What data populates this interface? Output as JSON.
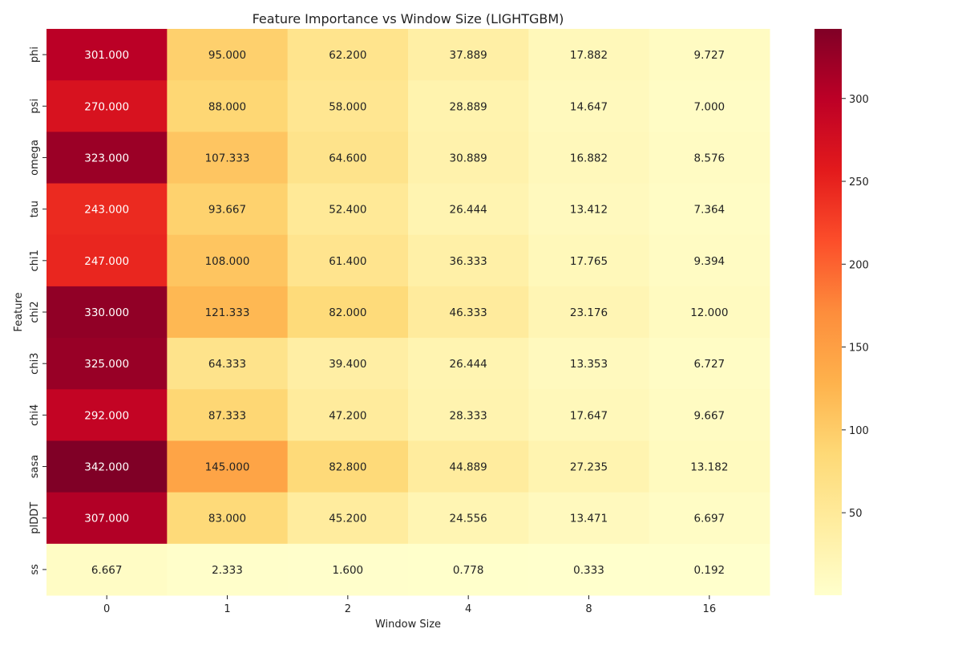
{
  "chart_data": {
    "type": "heatmap",
    "title": "Feature Importance vs Window Size (LIGHTGBM)",
    "xlabel": "Window Size",
    "ylabel": "Feature",
    "x_categories": [
      "0",
      "1",
      "2",
      "4",
      "8",
      "16"
    ],
    "y_categories": [
      "phi",
      "psi",
      "omega",
      "tau",
      "chi1",
      "chi2",
      "chi3",
      "chi4",
      "sasa",
      "plDDT",
      "ss"
    ],
    "values": [
      [
        301.0,
        95.0,
        62.2,
        37.889,
        17.882,
        9.727
      ],
      [
        270.0,
        88.0,
        58.0,
        28.889,
        14.647,
        7.0
      ],
      [
        323.0,
        107.333,
        64.6,
        30.889,
        16.882,
        8.576
      ],
      [
        243.0,
        93.667,
        52.4,
        26.444,
        13.412,
        7.364
      ],
      [
        247.0,
        108.0,
        61.4,
        36.333,
        17.765,
        9.394
      ],
      [
        330.0,
        121.333,
        82.0,
        46.333,
        23.176,
        12.0
      ],
      [
        325.0,
        64.333,
        39.4,
        26.444,
        13.353,
        6.727
      ],
      [
        292.0,
        87.333,
        47.2,
        28.333,
        17.647,
        9.667
      ],
      [
        342.0,
        145.0,
        82.8,
        44.889,
        27.235,
        13.182
      ],
      [
        307.0,
        83.0,
        45.2,
        24.556,
        13.471,
        6.697
      ],
      [
        6.667,
        2.333,
        1.6,
        0.778,
        0.333,
        0.192
      ]
    ],
    "value_format": "3 decimals",
    "colormap": "YlOrRd",
    "colorbar": {
      "range": [
        0.192,
        342.0
      ],
      "ticks": [
        50,
        100,
        150,
        200,
        250,
        300
      ],
      "placement": "right"
    },
    "grid": false
  }
}
